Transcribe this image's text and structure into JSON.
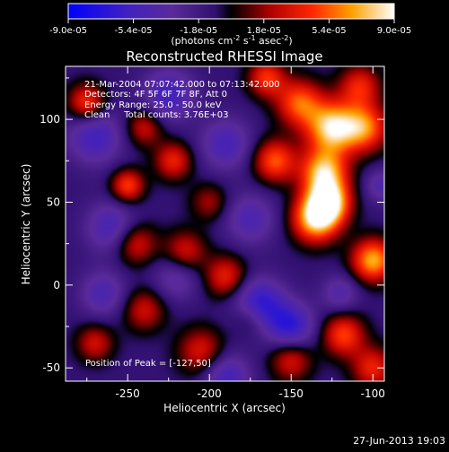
{
  "colorbar": {
    "ticks": [
      "-9.0e-05",
      "-5.4e-05",
      "-1.8e-05",
      "1.8e-05",
      "5.4e-05",
      "9.0e-05"
    ],
    "label": "(photons cm",
    "label_exp1": "-2",
    "label_mid": " s",
    "label_exp2": "-1",
    "label_end": " asec",
    "label_exp3": "-2",
    "label_close": ")"
  },
  "chart_data": {
    "type": "heatmap",
    "title": "Reconstructed RHESSI Image",
    "xlabel": "Heliocentric X (arcsec)",
    "ylabel": "Heliocentric Y (arcsec)",
    "xlim": [
      -288,
      -93
    ],
    "ylim": [
      -58,
      132
    ],
    "xticks": [
      -250,
      -200,
      -150,
      -100
    ],
    "yticks": [
      -50,
      0,
      50,
      100
    ],
    "zlim": [
      -9e-05,
      9e-05
    ],
    "info_lines": [
      "21-Mar-2004 07:07:42.000 to 07:13:42.000",
      "Detectors: 4F 5F 6F 7F 8F, Att 0",
      "Energy Range: 25.0 - 50.0 keV",
      "Clean     Total counts: 3.76E+03"
    ],
    "peak_text": "Position of Peak = [-127,50]",
    "blobs": [
      {
        "x": -125,
        "y": 95,
        "v": 1.0,
        "s": 11
      },
      {
        "x": -130,
        "y": 68,
        "v": 0.95,
        "s": 10
      },
      {
        "x": -135,
        "y": 40,
        "v": 1.0,
        "s": 10
      },
      {
        "x": -127,
        "y": 50,
        "v": 1.0,
        "s": 9
      },
      {
        "x": -145,
        "y": 110,
        "v": 0.7,
        "s": 10
      },
      {
        "x": -160,
        "y": 75,
        "v": 0.7,
        "s": 9
      },
      {
        "x": -165,
        "y": 125,
        "v": 0.6,
        "s": 8
      },
      {
        "x": -100,
        "y": 15,
        "v": 0.9,
        "s": 9
      },
      {
        "x": -105,
        "y": 95,
        "v": 0.75,
        "s": 10
      },
      {
        "x": -108,
        "y": 120,
        "v": 0.55,
        "s": 9
      },
      {
        "x": -118,
        "y": -30,
        "v": 0.65,
        "s": 9
      },
      {
        "x": -100,
        "y": -50,
        "v": 0.55,
        "s": 9
      },
      {
        "x": -150,
        "y": -45,
        "v": 0.5,
        "s": 9
      },
      {
        "x": -190,
        "y": 5,
        "v": 0.55,
        "s": 9
      },
      {
        "x": -215,
        "y": 20,
        "v": 0.5,
        "s": 9
      },
      {
        "x": -245,
        "y": 25,
        "v": 0.5,
        "s": 9
      },
      {
        "x": -205,
        "y": -40,
        "v": 0.5,
        "s": 10
      },
      {
        "x": -240,
        "y": -15,
        "v": 0.45,
        "s": 9
      },
      {
        "x": -270,
        "y": -35,
        "v": 0.45,
        "s": 8
      },
      {
        "x": -275,
        "y": 110,
        "v": 0.65,
        "s": 8
      },
      {
        "x": -250,
        "y": 60,
        "v": 0.65,
        "s": 7
      },
      {
        "x": -222,
        "y": 75,
        "v": 0.55,
        "s": 8
      },
      {
        "x": -240,
        "y": 95,
        "v": 0.45,
        "s": 8
      },
      {
        "x": -200,
        "y": 50,
        "v": 0.35,
        "s": 8
      },
      {
        "x": -175,
        "y": -20,
        "v": 0.35,
        "s": 8
      },
      {
        "x": -170,
        "y": -12,
        "v": -0.7,
        "s": 11
      },
      {
        "x": -150,
        "y": -25,
        "v": -0.6,
        "s": 10
      },
      {
        "x": -190,
        "y": -55,
        "v": -0.5,
        "s": 10
      },
      {
        "x": -270,
        "y": 90,
        "v": -0.5,
        "s": 12
      },
      {
        "x": -260,
        "y": 35,
        "v": -0.45,
        "s": 11
      },
      {
        "x": -225,
        "y": 115,
        "v": -0.5,
        "s": 11
      },
      {
        "x": -190,
        "y": 85,
        "v": -0.45,
        "s": 11
      },
      {
        "x": -175,
        "y": 40,
        "v": -0.4,
        "s": 11
      },
      {
        "x": -220,
        "y": 5,
        "v": -0.35,
        "s": 10
      },
      {
        "x": -265,
        "y": -5,
        "v": -0.4,
        "s": 10
      },
      {
        "x": -120,
        "y": -5,
        "v": -0.35,
        "s": 8
      },
      {
        "x": -95,
        "y": 60,
        "v": -0.35,
        "s": 7
      }
    ]
  }
}
